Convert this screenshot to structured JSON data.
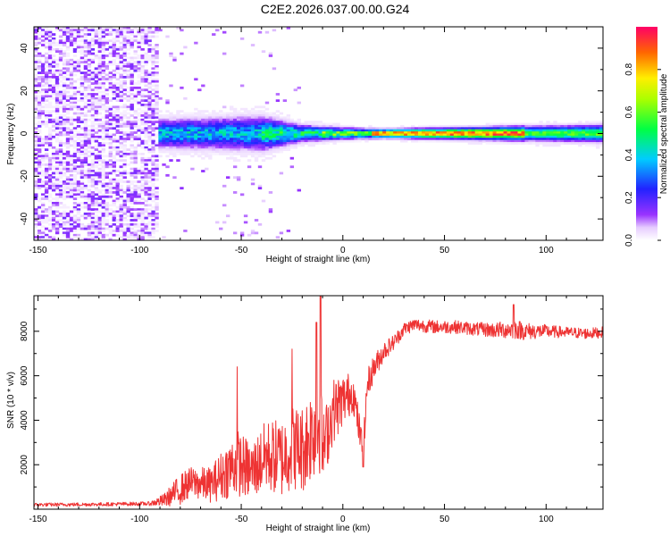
{
  "title": "C2E2.2026.037.00.00.G24",
  "colors": {
    "snr_line": "#ee3333",
    "axis": "#000000",
    "background": "#ffffff"
  },
  "chart_data": [
    {
      "type": "heatmap",
      "title": "C2E2.2026.037.00.00.G24",
      "xlabel": "Height of straight line (km)",
      "ylabel": "Frequency (Hz)",
      "xlim": [
        -152,
        128
      ],
      "ylim": [
        -50,
        50
      ],
      "xticks": [
        -150,
        -100,
        -50,
        0,
        50,
        100
      ],
      "yticks": [
        -40,
        -20,
        0,
        20,
        40
      ],
      "colorbar": {
        "label": "Normalized spectral amplitude",
        "range": [
          0,
          1
        ],
        "ticks": [
          0.0,
          0.2,
          0.4,
          0.6,
          0.8
        ],
        "tick_labels": [
          "0.0",
          "0.2",
          "0.4",
          "0.6",
          "0.8"
        ]
      },
      "description_points": {
        "noise_region_x": [
          -152,
          -90
        ],
        "signal_start_x": -90,
        "signal_centerline_hz": 0,
        "signal_halfwidth_hz": [
          [
            -90,
            5
          ],
          [
            -40,
            6
          ],
          [
            -20,
            3
          ],
          [
            0,
            2
          ],
          [
            20,
            1.5
          ],
          [
            128,
            3
          ]
        ],
        "peak_amplitude_x_range": [
          15,
          90
        ]
      }
    },
    {
      "type": "line",
      "xlabel": "Height of straight line (km)",
      "ylabel": "SNR (10 * v/v)",
      "xlim": [
        -152,
        128
      ],
      "ylim": [
        0,
        9600
      ],
      "xticks": [
        -150,
        -100,
        -50,
        0,
        50,
        100
      ],
      "yticks": [
        2000,
        4000,
        6000,
        8000
      ],
      "series": [
        {
          "name": "SNR",
          "x": [
            -152,
            -120,
            -95,
            -88,
            -80,
            -75,
            -65,
            -60,
            -52,
            -45,
            -38,
            -30,
            -25,
            -20,
            -15,
            -11,
            -10,
            -5,
            0,
            5,
            10,
            12,
            15,
            20,
            25,
            30,
            35,
            45,
            55,
            65,
            75,
            85,
            90,
            100,
            110,
            120,
            128
          ],
          "values": [
            200,
            220,
            250,
            400,
            900,
            1200,
            1100,
            1500,
            2100,
            1700,
            2400,
            2300,
            2800,
            2700,
            3500,
            4000,
            2600,
            4400,
            4900,
            5300,
            2500,
            5600,
            6300,
            7100,
            7500,
            8100,
            8300,
            8200,
            8200,
            8100,
            8050,
            8100,
            8000,
            8000,
            7950,
            7900,
            7950
          ],
          "spread": [
            80,
            80,
            90,
            300,
            700,
            700,
            800,
            1100,
            1500,
            1300,
            1600,
            1800,
            1900,
            2000,
            2200,
            2400,
            1600,
            1500,
            1200,
            900,
            700,
            700,
            600,
            450,
            350,
            300,
            300,
            300,
            300,
            300,
            350,
            450,
            400,
            300,
            250,
            250,
            250
          ],
          "spikes": [
            {
              "x": -52,
              "value": 6400
            },
            {
              "x": -25,
              "value": 7200
            },
            {
              "x": -13,
              "value": 8400
            },
            {
              "x": -11,
              "value": 9700
            },
            {
              "x": 10,
              "value": 1900
            },
            {
              "x": 84,
              "value": 9200
            }
          ]
        }
      ]
    }
  ]
}
